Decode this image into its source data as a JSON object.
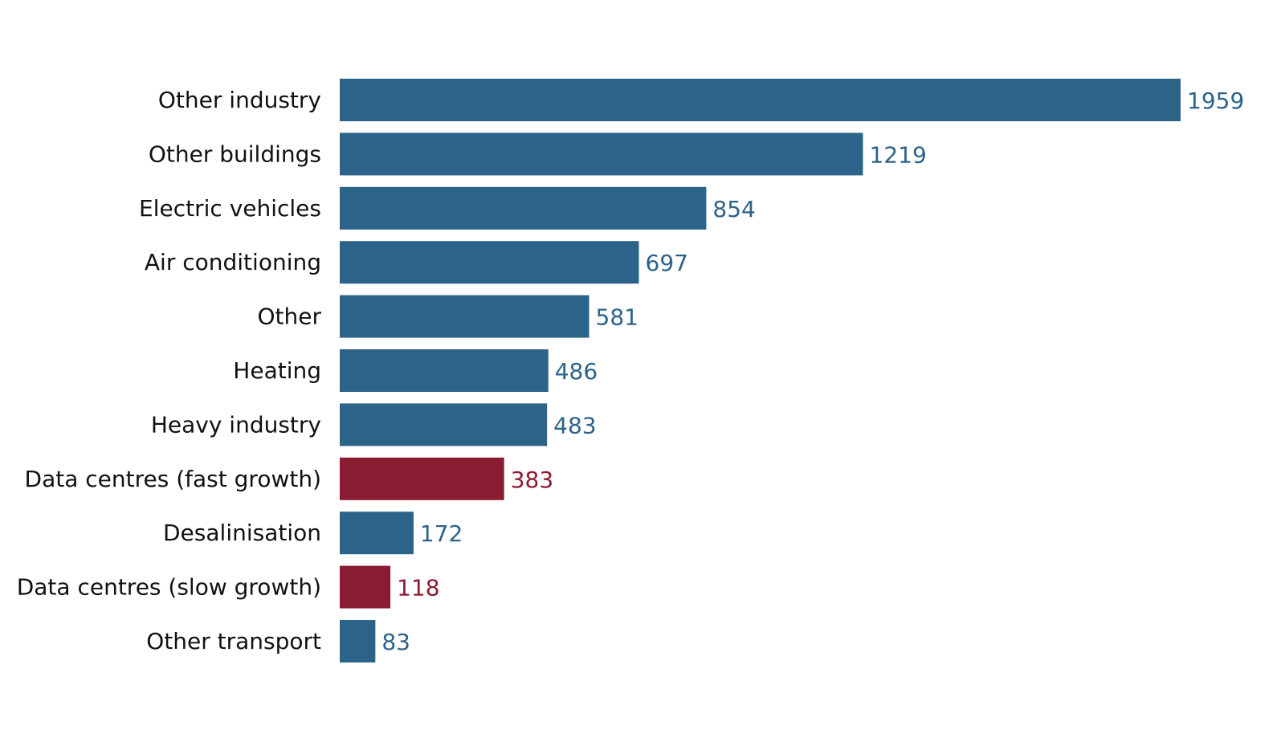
{
  "chart_data": {
    "type": "bar",
    "orientation": "horizontal",
    "title": "",
    "xlabel": "",
    "ylabel": "",
    "xlim": [
      0,
      1959
    ],
    "grid": false,
    "legend": "none",
    "colors": {
      "default": "#2c6389",
      "highlight": "#8a1c32"
    },
    "categories": [
      "Other industry",
      "Other buildings",
      "Electric vehicles",
      "Air conditioning",
      "Other",
      "Heating",
      "Heavy industry",
      "Data centres (fast growth)",
      "Desalinisation",
      "Data centres (slow growth)",
      "Other transport"
    ],
    "values": [
      1959,
      1219,
      854,
      697,
      581,
      486,
      483,
      383,
      172,
      118,
      83
    ],
    "value_labels": [
      "1959",
      "1219",
      "854",
      "697",
      "581",
      "486",
      "483",
      "383",
      "172",
      "118",
      "83"
    ],
    "highlighted": [
      false,
      false,
      false,
      false,
      false,
      false,
      false,
      true,
      false,
      true,
      false
    ]
  }
}
